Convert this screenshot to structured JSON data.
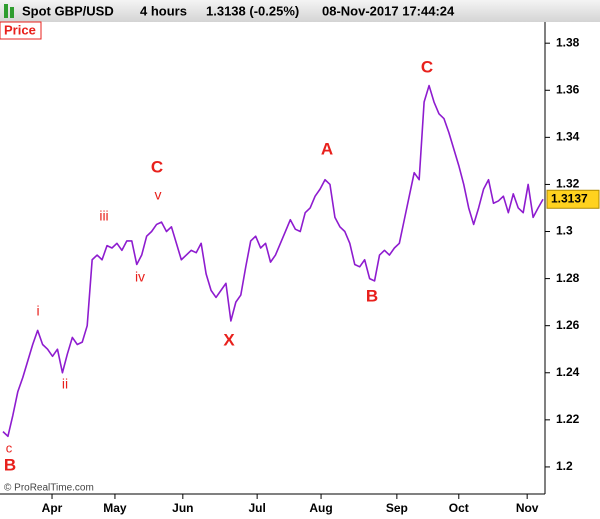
{
  "header": {
    "instrument": "Spot GBP/USD",
    "timeframe": "4 hours",
    "quote": "1.3138 (-0.25%)",
    "timestamp": "08-Nov-2017 17:44:24"
  },
  "chart_data": {
    "type": "line",
    "panel_label": "Price",
    "footer": "© ProRealTime.com",
    "series": [
      {
        "name": "GBP/USD",
        "color": "#8e1ccf",
        "values": [
          1.215,
          1.213,
          1.222,
          1.232,
          1.238,
          1.245,
          1.252,
          1.258,
          1.252,
          1.25,
          1.247,
          1.25,
          1.24,
          1.248,
          1.255,
          1.252,
          1.253,
          1.26,
          1.288,
          1.29,
          1.288,
          1.294,
          1.293,
          1.295,
          1.292,
          1.296,
          1.296,
          1.286,
          1.29,
          1.298,
          1.3,
          1.303,
          1.304,
          1.3,
          1.302,
          1.295,
          1.288,
          1.29,
          1.292,
          1.291,
          1.295,
          1.282,
          1.275,
          1.272,
          1.275,
          1.278,
          1.262,
          1.27,
          1.273,
          1.285,
          1.296,
          1.298,
          1.293,
          1.295,
          1.287,
          1.29,
          1.295,
          1.3,
          1.305,
          1.301,
          1.3,
          1.308,
          1.31,
          1.315,
          1.318,
          1.322,
          1.32,
          1.306,
          1.302,
          1.3,
          1.295,
          1.286,
          1.285,
          1.288,
          1.28,
          1.279,
          1.29,
          1.292,
          1.29,
          1.293,
          1.295,
          1.305,
          1.315,
          1.325,
          1.322,
          1.355,
          1.362,
          1.355,
          1.35,
          1.348,
          1.342,
          1.335,
          1.328,
          1.32,
          1.31,
          1.303,
          1.31,
          1.318,
          1.322,
          1.312,
          1.313,
          1.315,
          1.308,
          1.316,
          1.31,
          1.308,
          1.32,
          1.306,
          1.31,
          1.3137
        ]
      }
    ],
    "xlim": [
      -0.6,
      109.4
    ],
    "xticks": [
      {
        "value": 9.9,
        "label": "Apr"
      },
      {
        "value": 22.6,
        "label": "May"
      },
      {
        "value": 36.3,
        "label": "Jun"
      },
      {
        "value": 51.3,
        "label": "Jul"
      },
      {
        "value": 64.2,
        "label": "Aug"
      },
      {
        "value": 79.5,
        "label": "Sep"
      },
      {
        "value": 92.0,
        "label": "Oct"
      },
      {
        "value": 105.8,
        "label": "Nov"
      }
    ],
    "ylim": [
      1.1885,
      1.389
    ],
    "yticks": [
      1.2,
      1.22,
      1.24,
      1.26,
      1.28,
      1.3,
      1.32,
      1.34,
      1.36,
      1.38
    ],
    "annotations": [
      "c",
      "B",
      "i",
      "ii",
      "iii",
      "iv",
      "C",
      "v",
      "X",
      "A",
      "B",
      "C"
    ]
  }
}
